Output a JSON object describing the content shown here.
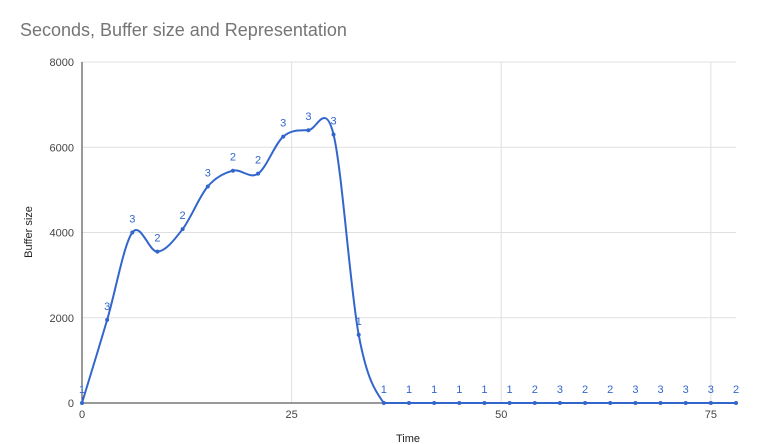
{
  "chart_data": {
    "type": "line",
    "title": "Seconds, Buffer size and Representation",
    "xlabel": "Time",
    "ylabel": "Buffer size",
    "xlim": [
      0,
      78
    ],
    "ylim": [
      0,
      8000
    ],
    "x_ticks": [
      0,
      25,
      50,
      75
    ],
    "y_ticks": [
      0,
      2000,
      4000,
      6000,
      8000
    ],
    "grid": true,
    "series_color": "#3366cc",
    "points": [
      {
        "x": 0,
        "y": 0,
        "label": "1"
      },
      {
        "x": 3,
        "y": 1950,
        "label": "3"
      },
      {
        "x": 6,
        "y": 4000,
        "label": "3"
      },
      {
        "x": 9,
        "y": 3550,
        "label": "2"
      },
      {
        "x": 12,
        "y": 4080,
        "label": "2"
      },
      {
        "x": 15,
        "y": 5080,
        "label": "3"
      },
      {
        "x": 18,
        "y": 5450,
        "label": "2"
      },
      {
        "x": 21,
        "y": 5380,
        "label": "2"
      },
      {
        "x": 24,
        "y": 6250,
        "label": "3"
      },
      {
        "x": 27,
        "y": 6400,
        "label": "3"
      },
      {
        "x": 30,
        "y": 6300,
        "label": "3"
      },
      {
        "x": 33,
        "y": 1600,
        "label": "1"
      },
      {
        "x": 36,
        "y": 0,
        "label": "1"
      },
      {
        "x": 39,
        "y": 0,
        "label": "1"
      },
      {
        "x": 42,
        "y": 0,
        "label": "1"
      },
      {
        "x": 45,
        "y": 0,
        "label": "1"
      },
      {
        "x": 48,
        "y": 0,
        "label": "1"
      },
      {
        "x": 51,
        "y": 0,
        "label": "1"
      },
      {
        "x": 54,
        "y": 0,
        "label": "2"
      },
      {
        "x": 57,
        "y": 0,
        "label": "3"
      },
      {
        "x": 60,
        "y": 0,
        "label": "2"
      },
      {
        "x": 63,
        "y": 0,
        "label": "2"
      },
      {
        "x": 66,
        "y": 0,
        "label": "3"
      },
      {
        "x": 69,
        "y": 0,
        "label": "3"
      },
      {
        "x": 72,
        "y": 0,
        "label": "3"
      },
      {
        "x": 75,
        "y": 0,
        "label": "3"
      },
      {
        "x": 78,
        "y": 0,
        "label": "2"
      }
    ]
  }
}
